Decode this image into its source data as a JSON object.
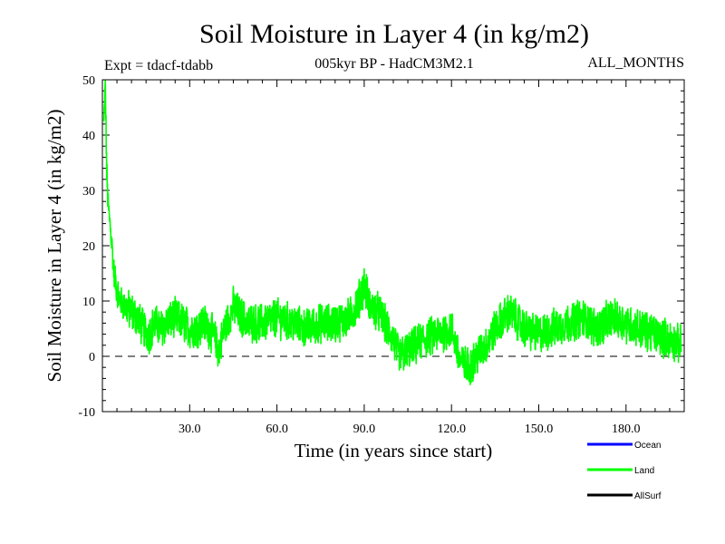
{
  "chart_data": {
    "type": "line",
    "title": "Soil Moisture in Layer 4 (in kg/m2)",
    "subtitle": "005kyr BP - HadCM3M2.1",
    "expt_label": "Expt = tdacf-tdabb",
    "months_label": "ALL_MONTHS",
    "xlabel": "Time (in years since start)",
    "ylabel": "Soil Moisture in Layer 4 (in kg/m2)",
    "xlim": [
      0,
      200
    ],
    "ylim": [
      -10,
      50
    ],
    "x_ticks": [
      30,
      60,
      90,
      120,
      150,
      180
    ],
    "x_tick_labels": [
      "30.0",
      "60.0",
      "90.0",
      "120.0",
      "150.0",
      "180.0"
    ],
    "y_ticks": [
      -10,
      0,
      10,
      20,
      30,
      40,
      50
    ],
    "y_tick_labels": [
      "-10",
      "0",
      "10",
      "20",
      "30",
      "40",
      "50"
    ],
    "zero_line": 0,
    "legend": [
      {
        "name": "Ocean",
        "color": "#0000ff"
      },
      {
        "name": "Land",
        "color": "#00ff00"
      },
      {
        "name": "AllSurf",
        "color": "#000000"
      }
    ],
    "series": [
      {
        "name": "Land",
        "color": "#00ff00",
        "x": [
          0.5,
          1,
          1.5,
          2,
          3,
          4,
          5,
          6,
          8,
          10,
          12,
          14,
          16,
          18,
          20,
          22,
          25,
          28,
          30,
          32,
          35,
          38,
          40,
          42,
          45,
          48,
          50,
          55,
          60,
          65,
          70,
          75,
          80,
          85,
          88,
          90,
          92,
          95,
          98,
          100,
          102,
          105,
          108,
          110,
          115,
          120,
          123,
          126,
          130,
          132,
          135,
          138,
          140,
          145,
          150,
          155,
          160,
          165,
          170,
          175,
          180,
          185,
          190,
          195,
          199
        ],
        "values": [
          42,
          49,
          33,
          27,
          22,
          15,
          12,
          10,
          9,
          8,
          7,
          5,
          4,
          6,
          5,
          6,
          7,
          6,
          5,
          5,
          6,
          4,
          1,
          5,
          9,
          7,
          6,
          6,
          7,
          6,
          5,
          6,
          6,
          7,
          10,
          13,
          9,
          8,
          5,
          3,
          0,
          1,
          2,
          3,
          4,
          5,
          -1,
          -2,
          1,
          2,
          5,
          7,
          8,
          5,
          4,
          5,
          6,
          7,
          5,
          7,
          6,
          5,
          4,
          3,
          2
        ]
      }
    ]
  }
}
